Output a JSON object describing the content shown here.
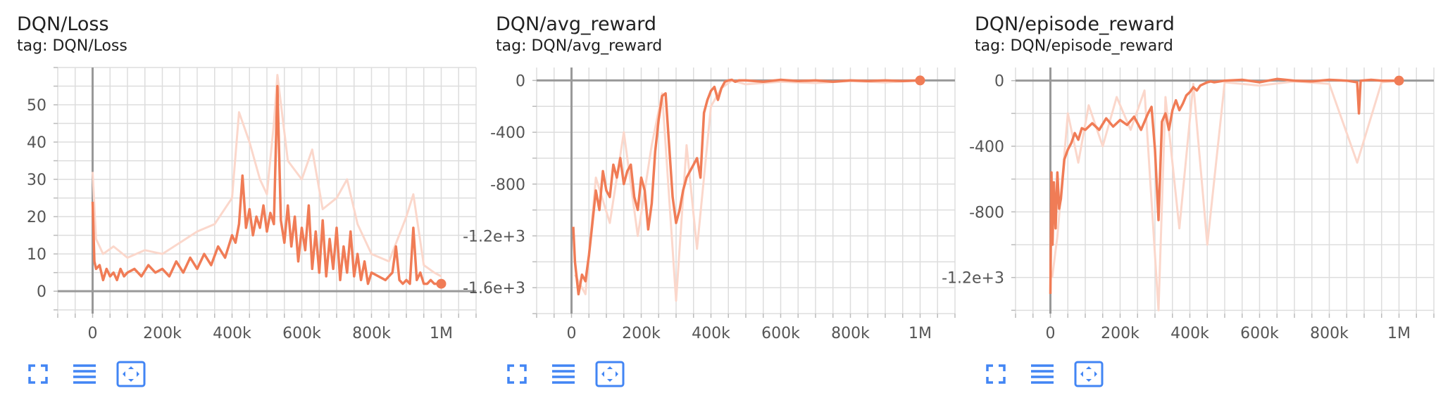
{
  "colors": {
    "accent": "#f07c56",
    "smooth_raw": "#fbd7cb",
    "grid": "#dddddd",
    "axis": "#999999",
    "tool_icon": "#4285f4"
  },
  "cards": [
    {
      "title": "DQN/Loss",
      "tag": "tag: DQN/Loss",
      "toolbar": {
        "fit_icon": "fullscreen-icon",
        "data_icon": "data-table-icon",
        "zoom_icon": "fit-domain-icon"
      }
    },
    {
      "title": "DQN/avg_reward",
      "tag": "tag: DQN/avg_reward",
      "toolbar": {
        "fit_icon": "fullscreen-icon",
        "data_icon": "data-table-icon",
        "zoom_icon": "fit-domain-icon"
      }
    },
    {
      "title": "DQN/episode_reward",
      "tag": "tag: DQN/episode_reward",
      "toolbar": {
        "fit_icon": "fullscreen-icon",
        "data_icon": "data-table-icon",
        "zoom_icon": "fit-domain-icon"
      }
    }
  ],
  "chart_data": [
    {
      "type": "line",
      "title": "DQN/Loss",
      "xlim": [
        -100000,
        1100000
      ],
      "ylim": [
        -6,
        60
      ],
      "x_ticks": [
        0,
        200000,
        400000,
        600000,
        800000,
        1000000
      ],
      "x_tick_labels": [
        "0",
        "200k",
        "400k",
        "600k",
        "800k",
        "1M"
      ],
      "y_ticks": [
        0,
        10,
        20,
        30,
        40,
        50
      ],
      "y_tick_labels": [
        "0",
        "10",
        "20",
        "30",
        "40",
        "50"
      ],
      "grid": true,
      "series": [
        {
          "role": "smoothed",
          "x": [
            0,
            5000,
            10000,
            20000,
            30000,
            40000,
            50000,
            60000,
            70000,
            80000,
            90000,
            100000,
            120000,
            140000,
            160000,
            180000,
            200000,
            220000,
            240000,
            260000,
            280000,
            300000,
            320000,
            340000,
            360000,
            380000,
            400000,
            410000,
            420000,
            430000,
            440000,
            450000,
            460000,
            470000,
            480000,
            490000,
            500000,
            510000,
            520000,
            530000,
            540000,
            550000,
            560000,
            570000,
            580000,
            590000,
            600000,
            610000,
            620000,
            630000,
            640000,
            650000,
            660000,
            670000,
            680000,
            690000,
            700000,
            710000,
            720000,
            730000,
            740000,
            750000,
            760000,
            770000,
            780000,
            790000,
            800000,
            820000,
            840000,
            860000,
            870000,
            880000,
            890000,
            900000,
            910000,
            920000,
            930000,
            940000,
            950000,
            960000,
            970000,
            980000,
            990000,
            1000000
          ],
          "y": [
            24,
            8,
            6,
            7,
            3,
            6,
            4,
            5,
            3,
            6,
            4,
            5,
            6,
            4,
            7,
            5,
            6,
            4,
            8,
            5,
            9,
            6,
            10,
            7,
            12,
            9,
            15,
            13,
            18,
            31,
            17,
            22,
            15,
            20,
            17,
            23,
            16,
            21,
            18,
            55,
            19,
            13,
            23,
            12,
            20,
            8,
            17,
            11,
            23,
            6,
            16,
            5,
            19,
            4,
            14,
            6,
            17,
            3,
            12,
            5,
            16,
            4,
            10,
            3,
            8,
            2,
            5,
            4,
            3,
            5,
            12,
            3,
            2,
            3,
            2,
            17,
            3,
            5,
            2,
            2,
            3,
            2,
            2,
            2
          ],
          "style": "bold"
        },
        {
          "role": "raw",
          "x": [
            0,
            10000,
            30000,
            60000,
            100000,
            150000,
            200000,
            250000,
            300000,
            350000,
            400000,
            420000,
            450000,
            480000,
            500000,
            520000,
            530000,
            560000,
            600000,
            630000,
            660000,
            700000,
            730000,
            760000,
            800000,
            850000,
            900000,
            920000,
            950000,
            980000,
            1000000
          ],
          "y": [
            32,
            14,
            10,
            12,
            9,
            11,
            10,
            13,
            16,
            18,
            25,
            48,
            40,
            30,
            26,
            45,
            58,
            35,
            30,
            38,
            22,
            25,
            30,
            18,
            10,
            8,
            20,
            26,
            7,
            5,
            4
          ],
          "style": "faded"
        }
      ],
      "last_point": {
        "x": 1000000,
        "y": 2
      }
    },
    {
      "type": "line",
      "title": "DQN/avg_reward",
      "xlim": [
        -100000,
        1100000
      ],
      "ylim": [
        -1800,
        100
      ],
      "x_ticks": [
        0,
        200000,
        400000,
        600000,
        800000,
        1000000
      ],
      "x_tick_labels": [
        "0",
        "200k",
        "400k",
        "600k",
        "800k",
        "1M"
      ],
      "y_ticks": [
        0,
        -400,
        -800,
        -1200,
        -1600
      ],
      "y_tick_labels": [
        "0",
        "-400",
        "-800",
        "-1.2e+3",
        "-1.6e+3"
      ],
      "grid": true,
      "series": [
        {
          "role": "smoothed",
          "x": [
            5000,
            10000,
            20000,
            30000,
            40000,
            50000,
            60000,
            70000,
            80000,
            90000,
            100000,
            110000,
            120000,
            130000,
            140000,
            150000,
            160000,
            170000,
            180000,
            190000,
            200000,
            210000,
            220000,
            230000,
            240000,
            250000,
            260000,
            270000,
            280000,
            290000,
            300000,
            310000,
            320000,
            330000,
            340000,
            350000,
            360000,
            370000,
            380000,
            390000,
            400000,
            410000,
            420000,
            430000,
            440000,
            450000,
            460000,
            470000,
            480000,
            500000,
            550000,
            600000,
            650000,
            700000,
            750000,
            800000,
            850000,
            900000,
            950000,
            1000000
          ],
          "y": [
            -1130,
            -1400,
            -1650,
            -1500,
            -1550,
            -1350,
            -1100,
            -850,
            -1000,
            -700,
            -850,
            -900,
            -650,
            -750,
            -600,
            -800,
            -700,
            -650,
            -900,
            -1000,
            -750,
            -850,
            -1150,
            -950,
            -550,
            -300,
            -120,
            -100,
            -500,
            -900,
            -1100,
            -1000,
            -850,
            -750,
            -700,
            -650,
            -600,
            -750,
            -250,
            -150,
            -80,
            -50,
            -150,
            -60,
            -10,
            0,
            5,
            -10,
            0,
            0,
            -10,
            5,
            -5,
            0,
            -10,
            0,
            -5,
            0,
            -5,
            0
          ],
          "style": "bold"
        },
        {
          "role": "raw",
          "x": [
            10000,
            40000,
            70000,
            110000,
            150000,
            190000,
            230000,
            260000,
            300000,
            330000,
            360000,
            400000,
            430000,
            460000,
            500000,
            600000,
            700000,
            800000,
            900000,
            1000000
          ],
          "y": [
            -1500,
            -1650,
            -750,
            -1100,
            -400,
            -1200,
            -500,
            -100,
            -1700,
            -500,
            -1300,
            -200,
            -60,
            0,
            -30,
            -10,
            -20,
            -5,
            -15,
            0
          ],
          "style": "faded"
        }
      ],
      "last_point": {
        "x": 1000000,
        "y": 0
      }
    },
    {
      "type": "line",
      "title": "DQN/episode_reward",
      "xlim": [
        -100000,
        1100000
      ],
      "ylim": [
        -1420,
        80
      ],
      "x_ticks": [
        0,
        200000,
        400000,
        600000,
        800000,
        1000000
      ],
      "x_tick_labels": [
        "0",
        "200k",
        "400k",
        "600k",
        "800k",
        "1M"
      ],
      "y_ticks": [
        0,
        -400,
        -800,
        -1200
      ],
      "y_tick_labels": [
        "0",
        "-400",
        "-800",
        "-1.2e+3"
      ],
      "grid": true,
      "series": [
        {
          "role": "smoothed",
          "x": [
            0,
            3000,
            6000,
            10000,
            15000,
            20000,
            25000,
            30000,
            35000,
            40000,
            50000,
            60000,
            70000,
            80000,
            90000,
            100000,
            120000,
            140000,
            160000,
            180000,
            200000,
            220000,
            240000,
            260000,
            280000,
            290000,
            300000,
            310000,
            320000,
            330000,
            340000,
            350000,
            360000,
            370000,
            380000,
            390000,
            400000,
            410000,
            420000,
            430000,
            440000,
            450000,
            460000,
            470000,
            500000,
            550000,
            600000,
            650000,
            700000,
            750000,
            800000,
            850000,
            880000,
            885000,
            890000,
            920000,
            950000,
            1000000
          ],
          "y": [
            -1300,
            -560,
            -1000,
            -620,
            -900,
            -560,
            -780,
            -720,
            -600,
            -480,
            -420,
            -380,
            -320,
            -360,
            -290,
            -300,
            -260,
            -300,
            -230,
            -280,
            -240,
            -270,
            -220,
            -300,
            -200,
            -160,
            -420,
            -850,
            -250,
            -200,
            -300,
            -180,
            -120,
            -180,
            -140,
            -90,
            -70,
            -40,
            -60,
            -30,
            -20,
            -10,
            -5,
            -10,
            0,
            5,
            -10,
            10,
            0,
            -5,
            5,
            0,
            -10,
            -200,
            0,
            5,
            0,
            0
          ],
          "style": "bold"
        },
        {
          "role": "raw",
          "x": [
            5000,
            20000,
            50000,
            80000,
            110000,
            150000,
            190000,
            230000,
            270000,
            310000,
            330000,
            370000,
            410000,
            450000,
            500000,
            600000,
            700000,
            800000,
            880000,
            950000,
            1000000
          ],
          "y": [
            -1200,
            -950,
            -200,
            -500,
            -150,
            -400,
            -100,
            -300,
            -60,
            -1400,
            -100,
            -900,
            -20,
            -1000,
            -10,
            -30,
            -5,
            -20,
            -500,
            -10,
            0
          ],
          "style": "faded"
        }
      ],
      "last_point": {
        "x": 1000000,
        "y": 0
      }
    }
  ]
}
